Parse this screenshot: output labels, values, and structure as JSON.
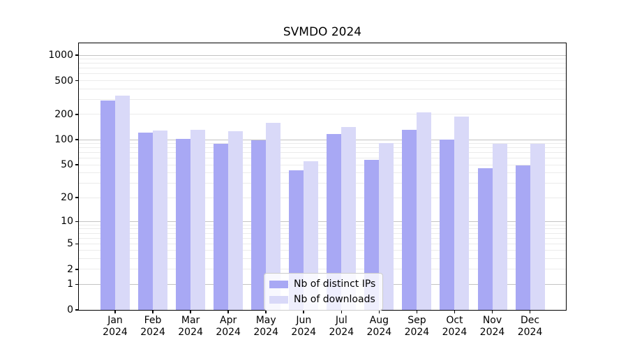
{
  "chart_data": {
    "type": "bar",
    "title": "SVMDO 2024",
    "year": "2024",
    "months": [
      "Jan",
      "Feb",
      "Mar",
      "Apr",
      "May",
      "Jun",
      "Jul",
      "Aug",
      "Sep",
      "Oct",
      "Nov",
      "Dec"
    ],
    "series": [
      {
        "name": "Nb of distinct IPs",
        "color": "#a8a8f4",
        "values": [
          290,
          121,
          103,
          90,
          98,
          43,
          118,
          58,
          130,
          100,
          46,
          49
        ]
      },
      {
        "name": "Nb of downloads",
        "color": "#d9d9f8",
        "values": [
          330,
          128,
          131,
          125,
          160,
          55,
          142,
          92,
          213,
          190,
          90,
          89
        ]
      }
    ],
    "y_ticks": [
      0,
      1,
      2,
      5,
      10,
      20,
      50,
      100,
      200,
      500,
      1000
    ],
    "yscale": "symlog (log1p)",
    "ylim": [
      0,
      1380
    ],
    "grid": true,
    "legend_position": "lower center",
    "colors": {
      "major_grid": "#c3c3c3",
      "minor_grid": "#ebebeb"
    }
  }
}
